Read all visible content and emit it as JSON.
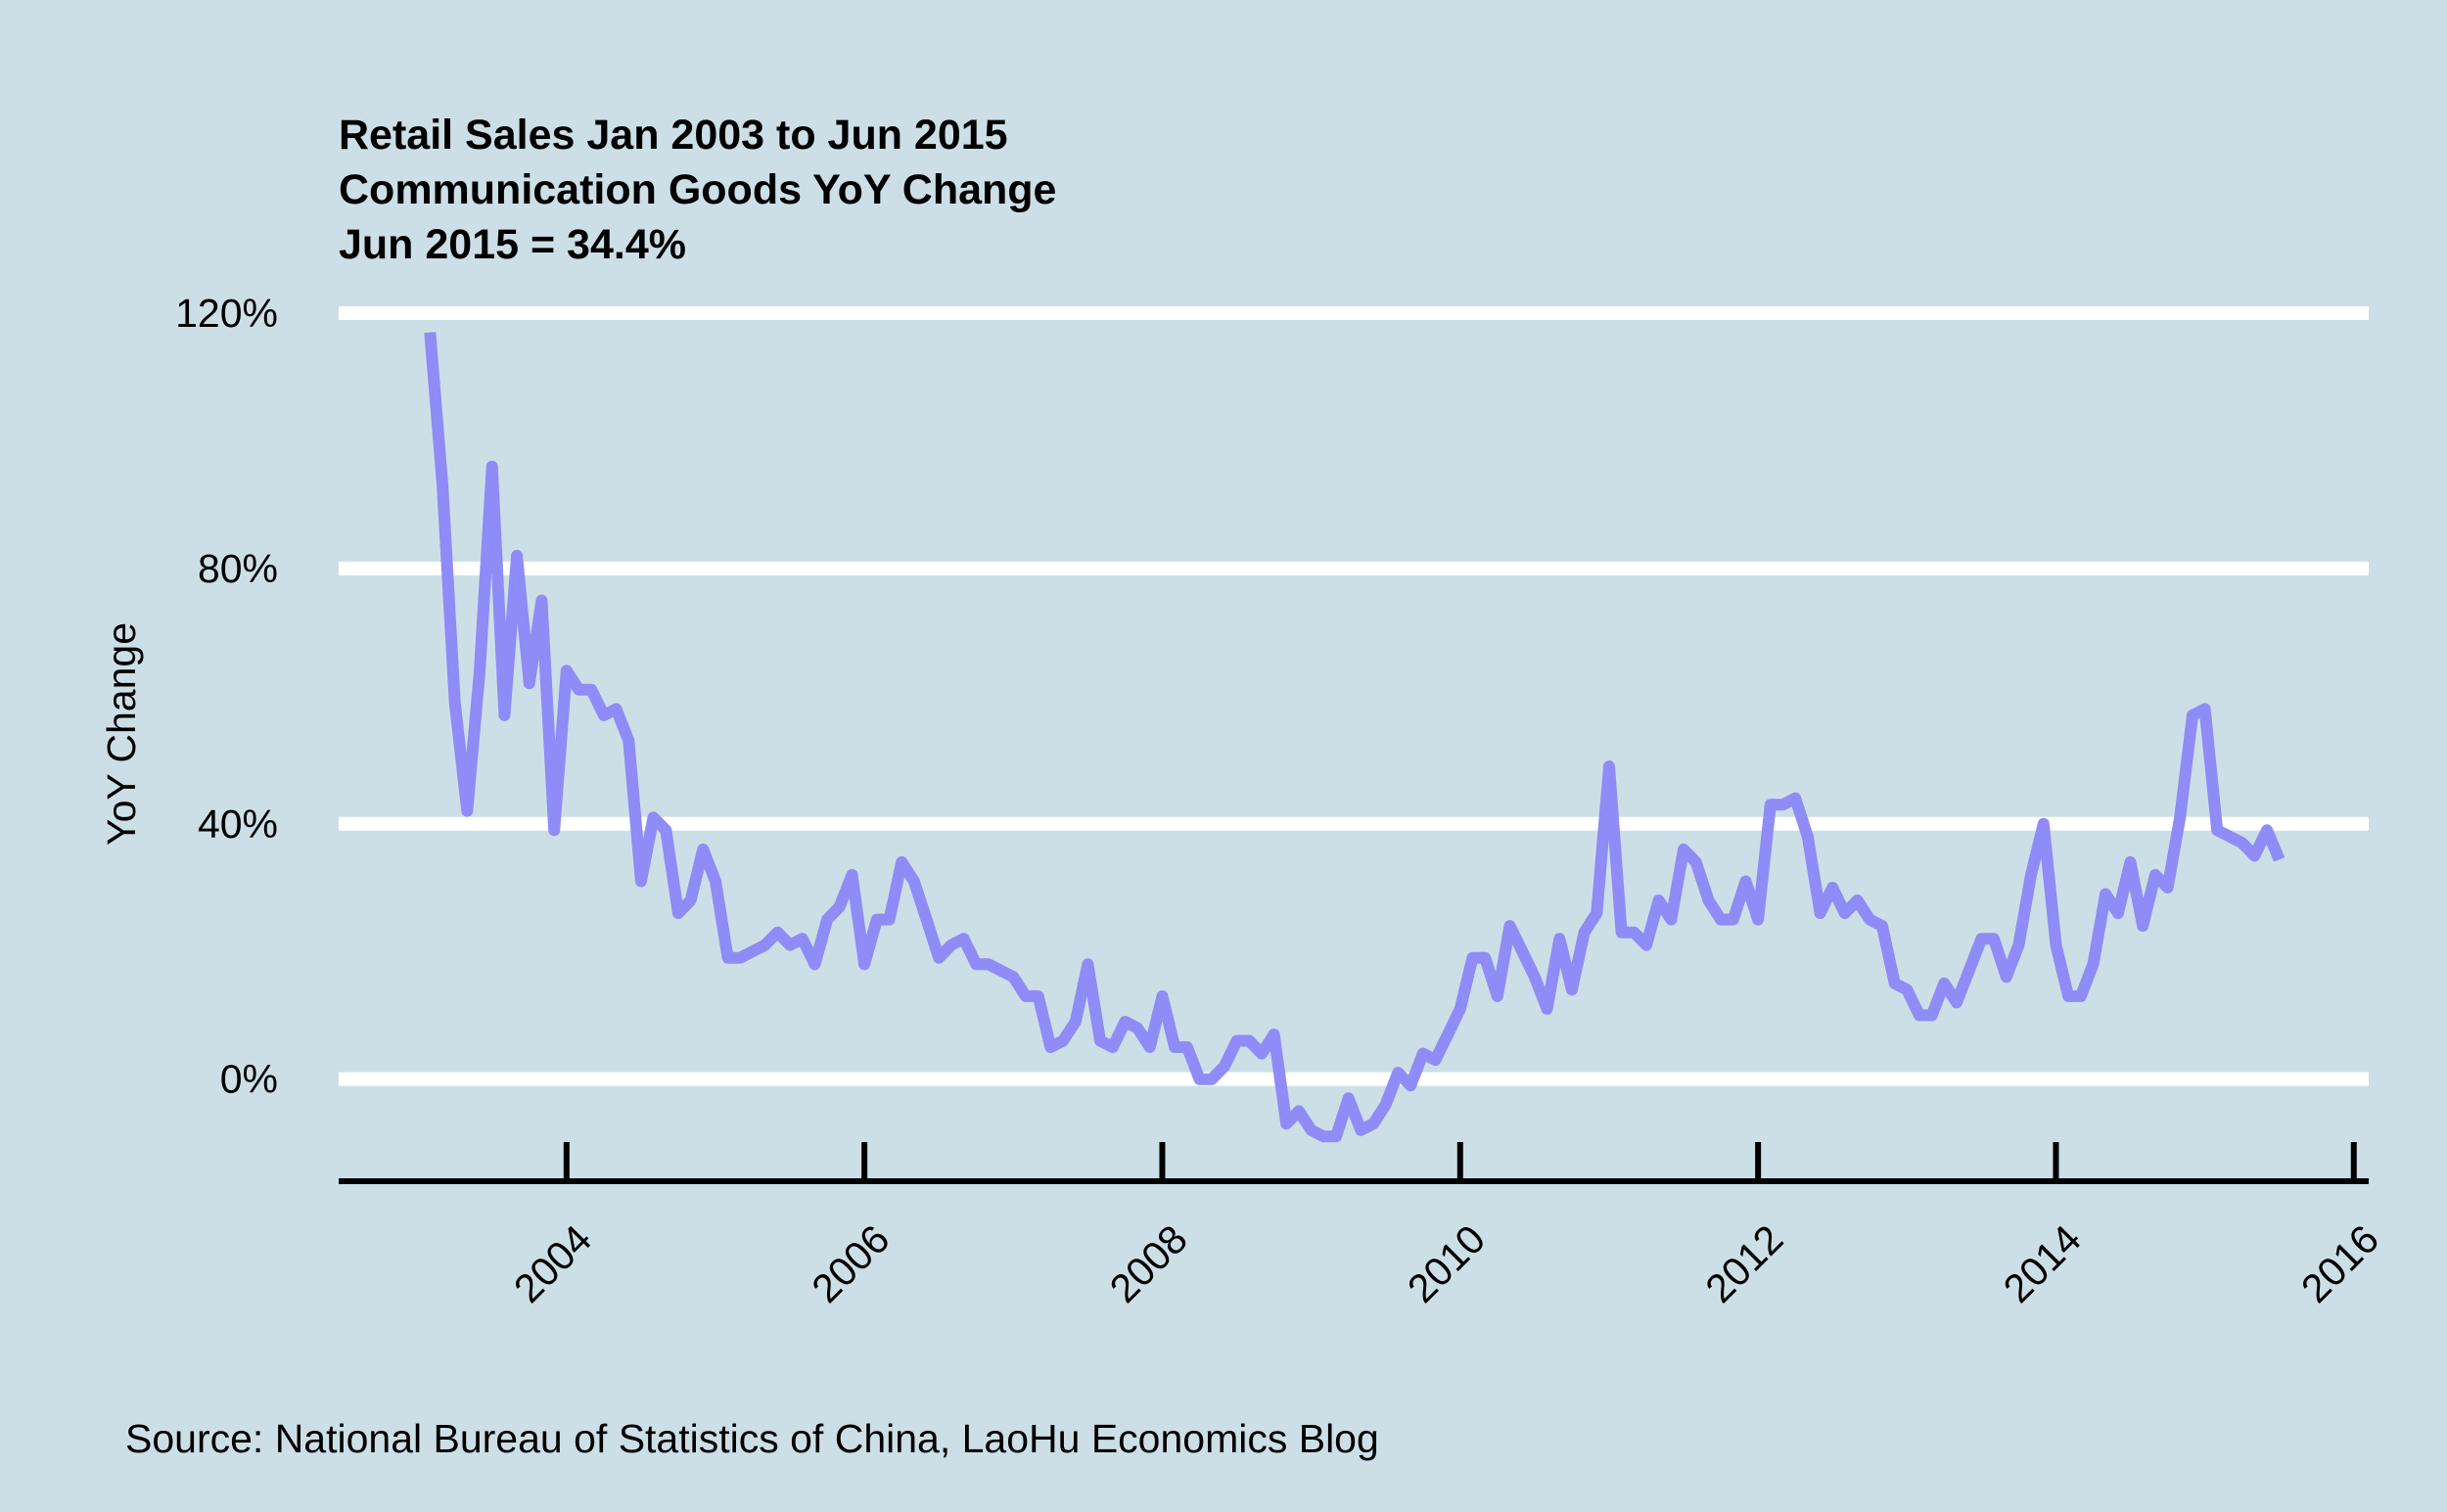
{
  "chart_data": {
    "type": "line",
    "title": [
      "Retail Sales Jan 2003 to Jun 2015",
      "Communication Goods YoY Change",
      "Jun 2015 = 34.4%"
    ],
    "y_label": "YoY Change",
    "source": "Source: National Bureau of Statistics of China, LaoHu Economics Blog",
    "color": "#8f8bf7",
    "grid": true,
    "x": [
      2003.083,
      2003.167,
      2003.25,
      2003.333,
      2003.417,
      2003.5,
      2003.583,
      2003.667,
      2003.75,
      2003.833,
      2003.917,
      2004,
      2004.083,
      2004.167,
      2004.25,
      2004.333,
      2004.417,
      2004.5,
      2004.583,
      2004.667,
      2004.75,
      2004.833,
      2004.917,
      2005,
      2005.083,
      2005.167,
      2005.25,
      2005.333,
      2005.417,
      2005.5,
      2005.583,
      2005.667,
      2005.75,
      2005.833,
      2005.917,
      2006,
      2006.083,
      2006.167,
      2006.25,
      2006.333,
      2006.417,
      2006.5,
      2006.583,
      2006.667,
      2006.75,
      2006.833,
      2006.917,
      2007,
      2007.083,
      2007.167,
      2007.25,
      2007.333,
      2007.417,
      2007.5,
      2007.583,
      2007.667,
      2007.75,
      2007.833,
      2007.917,
      2008,
      2008.083,
      2008.167,
      2008.25,
      2008.333,
      2008.417,
      2008.5,
      2008.583,
      2008.667,
      2008.75,
      2008.833,
      2008.917,
      2009,
      2009.083,
      2009.167,
      2009.25,
      2009.333,
      2009.417,
      2009.5,
      2009.583,
      2009.667,
      2009.75,
      2009.833,
      2009.917,
      2010,
      2010.083,
      2010.167,
      2010.25,
      2010.333,
      2010.417,
      2010.5,
      2010.583,
      2010.667,
      2010.75,
      2010.833,
      2010.917,
      2011,
      2011.083,
      2011.167,
      2011.25,
      2011.333,
      2011.417,
      2011.5,
      2011.583,
      2011.667,
      2011.75,
      2011.833,
      2011.917,
      2012,
      2012.083,
      2012.167,
      2012.25,
      2012.333,
      2012.417,
      2012.5,
      2012.583,
      2012.667,
      2012.75,
      2012.833,
      2012.917,
      2013,
      2013.083,
      2013.167,
      2013.25,
      2013.333,
      2013.417,
      2013.5,
      2013.583,
      2013.667,
      2013.75,
      2013.833,
      2013.917,
      2014,
      2014.083,
      2014.167,
      2014.25,
      2014.333,
      2014.417,
      2014.5,
      2014.583,
      2014.667,
      2014.75,
      2014.833,
      2014.917,
      2015,
      2015.083,
      2015.167,
      2015.25,
      2015.333,
      2015.417,
      2015.5
    ],
    "values": [
      117,
      93,
      59,
      42,
      64,
      96,
      57,
      82,
      62,
      75,
      39,
      64,
      61,
      61,
      57,
      58,
      53,
      31,
      41,
      39,
      26,
      28,
      36,
      31,
      19,
      19,
      20,
      21,
      23,
      21,
      22,
      18,
      25,
      27,
      32,
      18,
      25,
      25,
      34,
      31,
      25,
      19,
      21,
      22,
      18,
      18,
      17,
      16,
      13,
      13,
      5,
      6,
      9,
      18,
      6,
      5,
      9,
      8,
      5,
      13,
      5,
      5,
      0,
      0,
      2,
      6,
      6,
      4,
      7,
      -7,
      -5,
      -8,
      -9,
      -9,
      -3,
      -8,
      -7,
      -4,
      1,
      -1,
      4,
      3,
      7,
      11,
      19,
      19,
      13,
      24,
      20,
      16,
      11,
      22,
      14,
      23,
      26,
      49,
      23,
      23,
      21,
      28,
      25,
      36,
      34,
      28,
      25,
      25,
      31,
      25,
      43,
      43,
      44,
      38,
      26,
      30,
      26,
      28,
      25,
      24,
      15,
      14,
      10,
      10,
      15,
      12,
      17,
      22,
      22,
      16,
      21,
      32,
      40,
      21,
      13,
      13,
      18,
      29,
      26,
      34,
      24,
      32,
      30,
      41,
      57,
      58,
      39,
      38,
      37,
      35,
      39,
      34.4
    ],
    "xlim": [
      2002.47,
      2016.1
    ],
    "xticks": [
      2004,
      2006,
      2008,
      2010,
      2012,
      2014,
      2016
    ],
    "ylim": [
      -16,
      122
    ],
    "yticks": [
      {
        "value": 0,
        "label": "0%"
      },
      {
        "value": 40,
        "label": "40%"
      },
      {
        "value": 80,
        "label": "80%"
      },
      {
        "value": 120,
        "label": "120%"
      }
    ]
  }
}
